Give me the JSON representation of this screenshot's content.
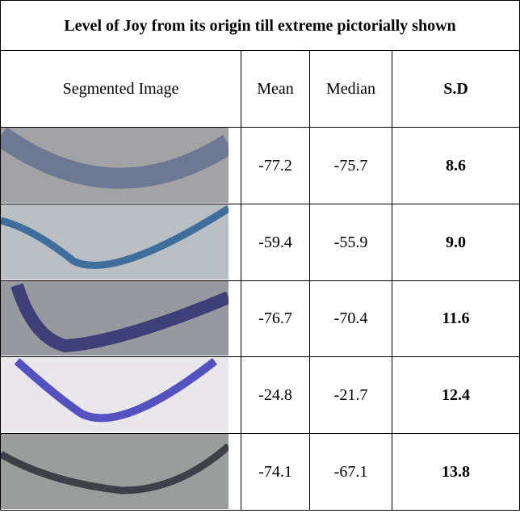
{
  "table": {
    "title": "Level of Joy from its origin till extreme pictorially shown",
    "headers": [
      "Segmented Image",
      "Mean",
      "Median",
      "S.D"
    ],
    "rows": [
      [
        "-77.2",
        "-75.7",
        "8.6"
      ],
      [
        "-59.4",
        "-55.9",
        "9.0"
      ],
      [
        "-76.7",
        "-70.4",
        "11.6"
      ],
      [
        "-24.8",
        "-21.7",
        "12.4"
      ],
      [
        "-74.1",
        "-67.1",
        "13.8"
      ]
    ]
  }
}
